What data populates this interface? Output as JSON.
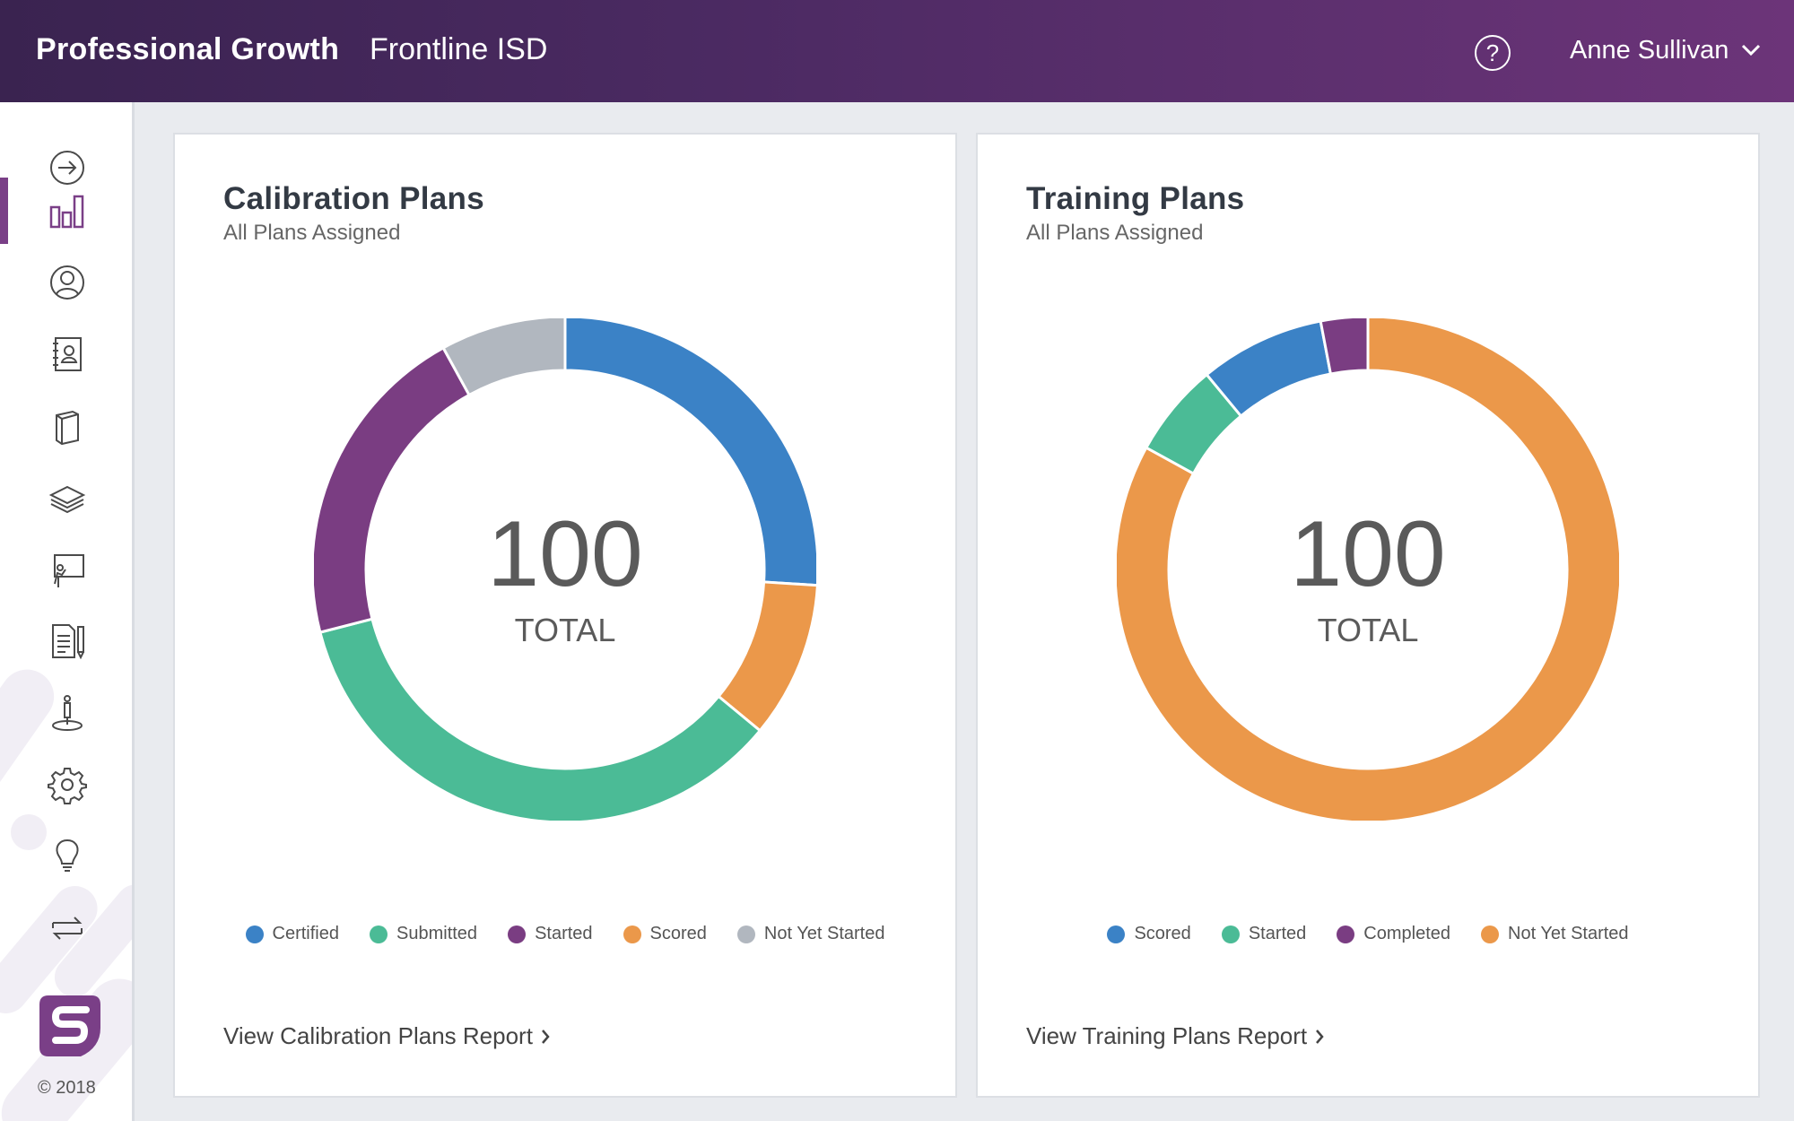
{
  "header": {
    "app_title": "Professional Growth",
    "org_name": "Frontline ISD",
    "user_name": "Anne Sullivan",
    "help_glyph": "?"
  },
  "sidebar": {
    "copyright": "© 2018",
    "active_index": 1,
    "icons": [
      "arrow-right-circle-icon",
      "bar-chart-icon",
      "user-circle-icon",
      "address-book-icon",
      "book-icon",
      "layers-icon",
      "presentation-icon",
      "document-pencil-icon",
      "person-location-icon",
      "gear-icon",
      "lightbulb-icon",
      "swap-arrows-icon"
    ]
  },
  "colors": {
    "header_start": "#3a2350",
    "header_end": "#6c3479",
    "accent": "#7a3f87",
    "blue": "#3b82c6",
    "green": "#4bbb96",
    "purple": "#7a3d82",
    "orange": "#eb984a",
    "gray": "#b1b7bf"
  },
  "chart_data": [
    {
      "type": "pie",
      "title": "Calibration Plans",
      "subtitle": "All Plans Assigned",
      "center_value": "100",
      "center_label": "TOTAL",
      "series": [
        {
          "name": "Certified",
          "value": 26,
          "color": "#3b82c6"
        },
        {
          "name": "Scored",
          "value": 10,
          "color": "#eb984a"
        },
        {
          "name": "Submitted",
          "value": 35,
          "color": "#4bbb96"
        },
        {
          "name": "Started",
          "value": 21,
          "color": "#7a3d82"
        },
        {
          "name": "Not Yet Started",
          "value": 8,
          "color": "#b1b7bf"
        }
      ],
      "legend": [
        "Certified",
        "Submitted",
        "Started",
        "Scored",
        "Not Yet Started"
      ],
      "link": "View Calibration Plans Report"
    },
    {
      "type": "pie",
      "title": "Training Plans",
      "subtitle": "All Plans Assigned",
      "center_value": "100",
      "center_label": "TOTAL",
      "series": [
        {
          "name": "Not Yet Started",
          "value": 83,
          "color": "#eb984a"
        },
        {
          "name": "Started",
          "value": 6,
          "color": "#4bbb96"
        },
        {
          "name": "Scored",
          "value": 8,
          "color": "#3b82c6"
        },
        {
          "name": "Completed",
          "value": 3,
          "color": "#7a3d82"
        }
      ],
      "legend": [
        "Scored",
        "Started",
        "Completed",
        "Not Yet Started"
      ],
      "link": "View Training Plans Report"
    }
  ]
}
